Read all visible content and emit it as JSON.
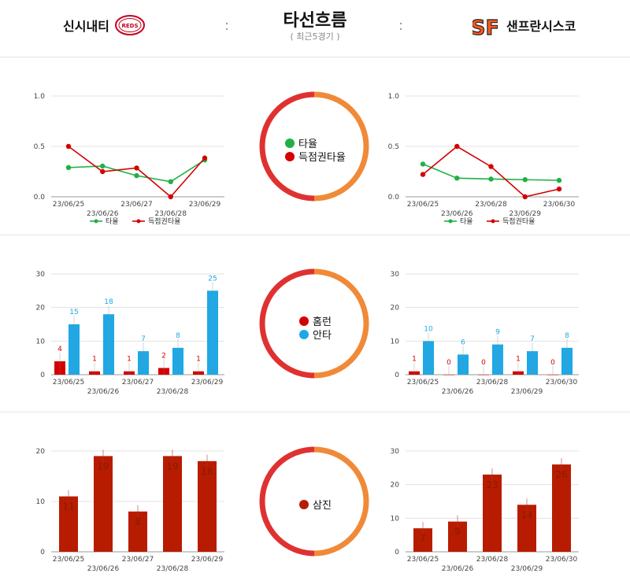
{
  "header": {
    "title": "타선흐름",
    "subtitle": "( 최근5경기 )",
    "home_team": "신시내티",
    "away_team": "샌프란시스코",
    "separator": ":",
    "home_logo_text": "REDS",
    "away_logo_text": "SF"
  },
  "colors": {
    "avg": "#20b045",
    "risp": "#d40000",
    "hr": "#d40000",
    "hit": "#1ea8e6",
    "so": "#b81c00",
    "ring_left": "#e03131",
    "ring_right": "#f08a38"
  },
  "ring_legends": {
    "line": [
      "타율",
      "득점권타율"
    ],
    "bar": [
      "홈런",
      "안타"
    ],
    "so": [
      "삼진"
    ]
  },
  "chart_data": [
    {
      "id": "left-line",
      "type": "line",
      "x": [
        "23/06/25",
        "23/06/26",
        "23/06/27",
        "23/06/28",
        "23/06/29"
      ],
      "series": [
        {
          "name": "타율",
          "values": [
            0.29,
            0.305,
            0.21,
            0.15,
            0.365
          ]
        },
        {
          "name": "득점권타율",
          "values": [
            0.5,
            0.25,
            0.286,
            0.0,
            0.385
          ]
        }
      ],
      "ylim": [
        0,
        1.0
      ],
      "yticks": [
        "0.0",
        "0.5",
        "1.0"
      ],
      "legend": "bottom"
    },
    {
      "id": "right-line",
      "type": "line",
      "x": [
        "23/06/25",
        "23/06/26",
        "23/06/28",
        "23/06/29",
        "23/06/30"
      ],
      "series": [
        {
          "name": "타율",
          "values": [
            0.325,
            0.185,
            0.176,
            0.17,
            0.163
          ]
        },
        {
          "name": "득점권타율",
          "values": [
            0.222,
            0.5,
            0.3,
            0.0,
            0.077
          ]
        }
      ],
      "ylim": [
        0,
        1.0
      ],
      "yticks": [
        "0.0",
        "0.5",
        "1.0"
      ],
      "legend": "bottom"
    },
    {
      "id": "left-bar",
      "type": "bar",
      "categories": [
        "23/06/25",
        "23/06/26",
        "23/06/27",
        "23/06/28",
        "23/06/29"
      ],
      "series": [
        {
          "name": "홈런",
          "values": [
            4,
            1,
            1,
            2,
            1
          ]
        },
        {
          "name": "안타",
          "values": [
            15,
            18,
            7,
            8,
            25
          ]
        }
      ],
      "ylim": [
        0,
        30
      ],
      "yticks": [
        "0",
        "10",
        "20",
        "30"
      ]
    },
    {
      "id": "right-bar",
      "type": "bar",
      "categories": [
        "23/06/25",
        "23/06/26",
        "23/06/28",
        "23/06/29",
        "23/06/30"
      ],
      "series": [
        {
          "name": "홈런",
          "values": [
            1,
            0,
            0,
            1,
            0
          ]
        },
        {
          "name": "안타",
          "values": [
            10,
            6,
            9,
            7,
            8
          ]
        }
      ],
      "ylim": [
        0,
        30
      ],
      "yticks": [
        "0",
        "10",
        "20",
        "30"
      ]
    },
    {
      "id": "left-so",
      "type": "bar",
      "categories": [
        "23/06/25",
        "23/06/26",
        "23/06/27",
        "23/06/28",
        "23/06/29"
      ],
      "series": [
        {
          "name": "삼진",
          "values": [
            11,
            19,
            8,
            19,
            18
          ]
        }
      ],
      "ylim": [
        0,
        20
      ],
      "yticks": [
        "0",
        "10",
        "20"
      ]
    },
    {
      "id": "right-so",
      "type": "bar",
      "categories": [
        "23/06/25",
        "23/06/26",
        "23/06/28",
        "23/06/29",
        "23/06/30"
      ],
      "series": [
        {
          "name": "삼진",
          "values": [
            7,
            9,
            23,
            14,
            26
          ]
        }
      ],
      "ylim": [
        0,
        30
      ],
      "yticks": [
        "0",
        "10",
        "20",
        "30"
      ]
    }
  ]
}
